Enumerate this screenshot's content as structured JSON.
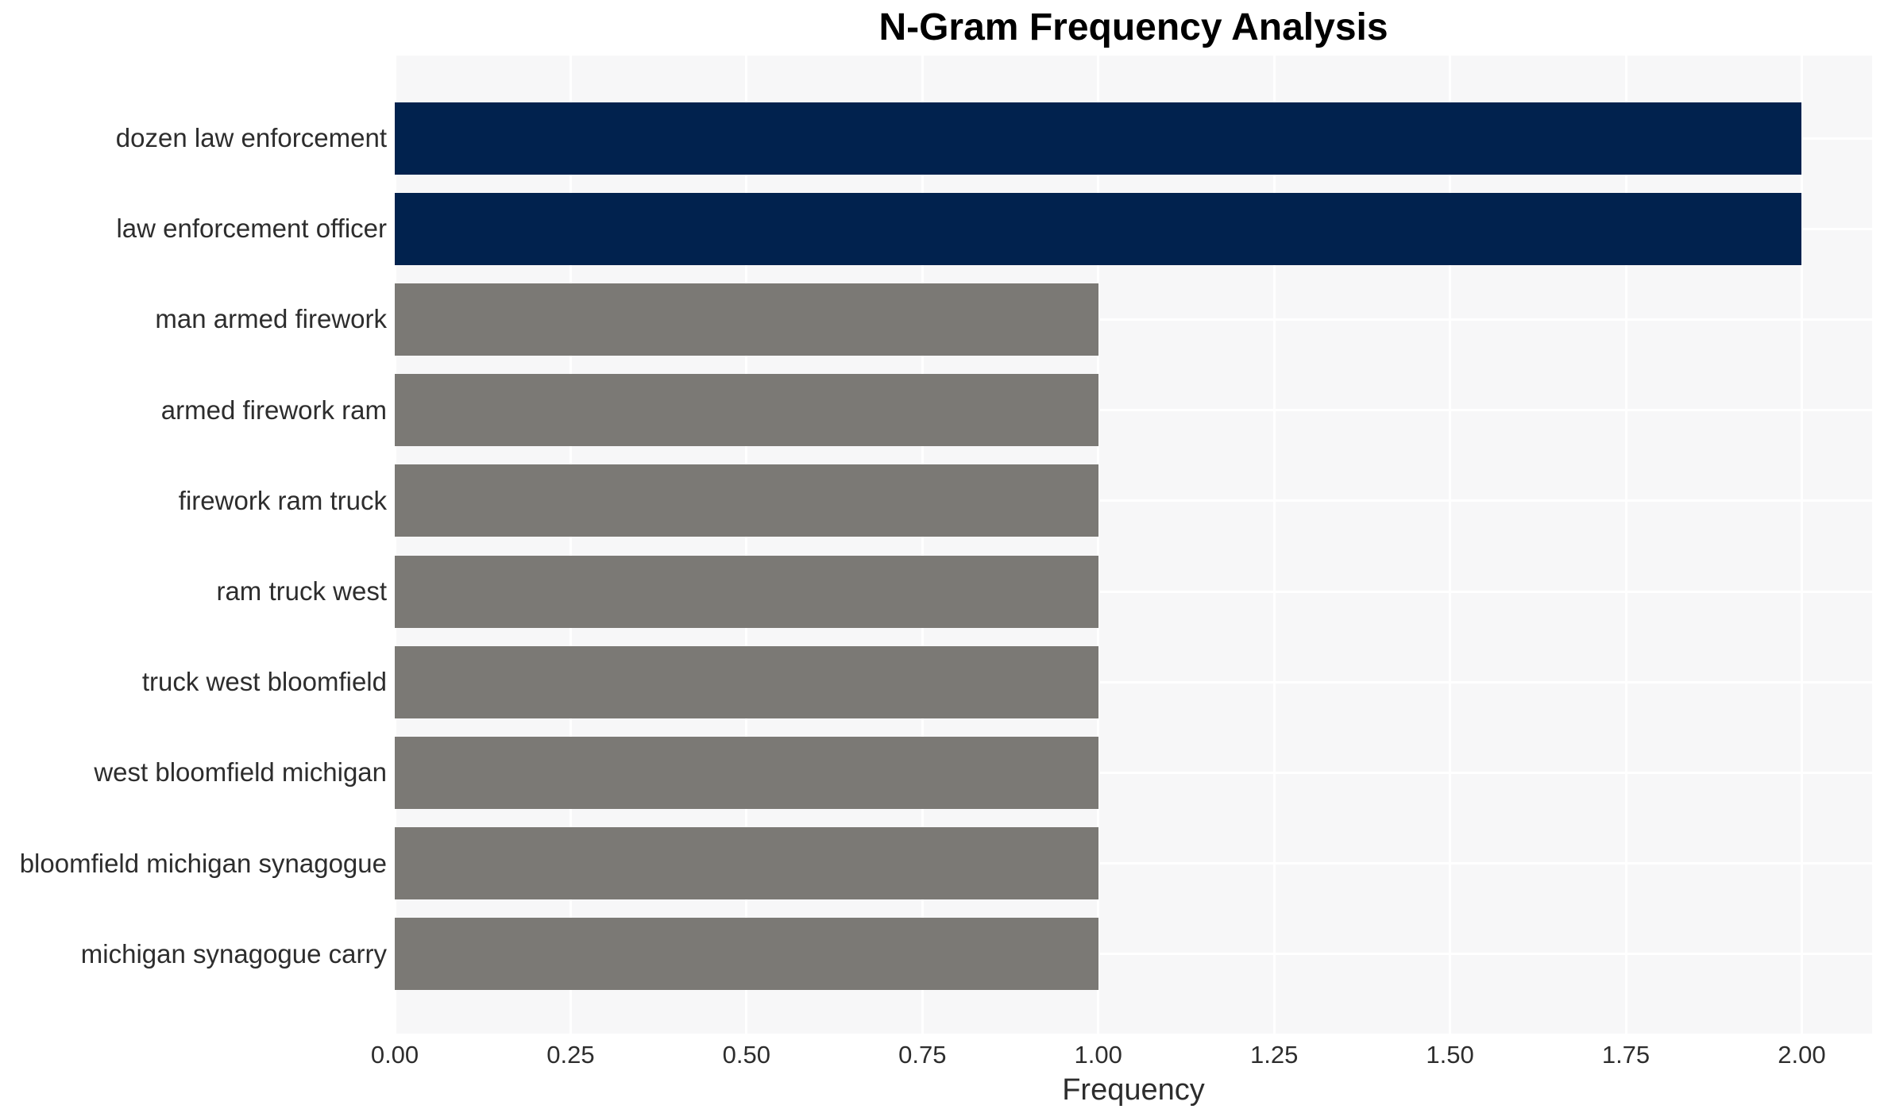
{
  "chart_data": {
    "type": "bar",
    "orientation": "horizontal",
    "title": "N-Gram Frequency Analysis",
    "xlabel": "Frequency",
    "ylabel": "",
    "categories": [
      "dozen law enforcement",
      "law enforcement officer",
      "man armed firework",
      "armed firework ram",
      "firework ram truck",
      "ram truck west",
      "truck west bloomfield",
      "west bloomfield michigan",
      "bloomfield michigan synagogue",
      "michigan synagogue carry"
    ],
    "values": [
      2,
      2,
      1,
      1,
      1,
      1,
      1,
      1,
      1,
      1
    ],
    "xlim": [
      0,
      2.1
    ],
    "xticks": [
      0,
      0.25,
      0.5,
      0.75,
      1,
      1.25,
      1.5,
      1.75,
      2
    ],
    "xtick_labels": [
      "0.00",
      "0.25",
      "0.50",
      "0.75",
      "1.00",
      "1.25",
      "1.50",
      "1.75",
      "2.00"
    ],
    "bar_colors": [
      "#01224e",
      "#01224e",
      "#7b7975",
      "#7b7975",
      "#7b7975",
      "#7b7975",
      "#7b7975",
      "#7b7975",
      "#7b7975",
      "#7b7975"
    ],
    "colors": {
      "highlight_bar": "#01224e",
      "default_bar": "#7b7975",
      "panel_background": "#f7f7f8",
      "gridline": "#ffffff",
      "tick_text": "#2d2d2d",
      "title_text": "#000000"
    },
    "legend": false,
    "grid": "major"
  }
}
